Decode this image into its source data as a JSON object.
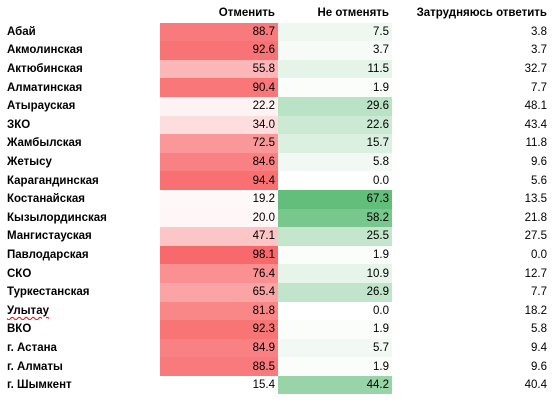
{
  "header": {
    "region": "",
    "cancel": "Отменить",
    "keep": "Не отменять",
    "hard": "Затрудняюсь ответить"
  },
  "colors": {
    "cancel_scale": [
      "#ffffff",
      "#f8696b"
    ],
    "keep_scale": [
      "#ffffff",
      "#63be7b"
    ]
  },
  "rows": [
    {
      "region": "Абай",
      "cancel": "88.7",
      "keep": "7.5",
      "hard": "3.8"
    },
    {
      "region": "Акмолинская",
      "cancel": "92.6",
      "keep": "3.7",
      "hard": "3.7"
    },
    {
      "region": "Актюбинская",
      "cancel": "55.8",
      "keep": "11.5",
      "hard": "32.7"
    },
    {
      "region": "Алматинская",
      "cancel": "90.4",
      "keep": "1.9",
      "hard": "7.7"
    },
    {
      "region": "Атырауская",
      "cancel": "22.2",
      "keep": "29.6",
      "hard": "48.1"
    },
    {
      "region": "ЗКО",
      "cancel": "34.0",
      "keep": "22.6",
      "hard": "43.4"
    },
    {
      "region": "Жамбылская",
      "cancel": "72.5",
      "keep": "15.7",
      "hard": "11.8"
    },
    {
      "region": "Жетысу",
      "cancel": "84.6",
      "keep": "5.8",
      "hard": "9.6"
    },
    {
      "region": "Карагандинская",
      "cancel": "94.4",
      "keep": "0.0",
      "hard": "5.6"
    },
    {
      "region": "Костанайская",
      "cancel": "19.2",
      "keep": "67.3",
      "hard": "13.5"
    },
    {
      "region": "Кызылординская",
      "cancel": "20.0",
      "keep": "58.2",
      "hard": "21.8"
    },
    {
      "region": "Мангистауская",
      "cancel": "47.1",
      "keep": "25.5",
      "hard": "27.5"
    },
    {
      "region": "Павлодарская",
      "cancel": "98.1",
      "keep": "1.9",
      "hard": "0.0"
    },
    {
      "region": "СКО",
      "cancel": "76.4",
      "keep": "10.9",
      "hard": "12.7"
    },
    {
      "region": "Туркестанская",
      "cancel": "65.4",
      "keep": "26.9",
      "hard": "7.7"
    },
    {
      "region": "Улытау",
      "cancel": "81.8",
      "keep": "0.0",
      "hard": "18.2",
      "spellcheck": true
    },
    {
      "region": "ВКО",
      "cancel": "92.3",
      "keep": "1.9",
      "hard": "5.8"
    },
    {
      "region": "г. Астана",
      "cancel": "84.9",
      "keep": "5.7",
      "hard": "9.4"
    },
    {
      "region": "г. Алматы",
      "cancel": "88.5",
      "keep": "1.9",
      "hard": "9.6"
    },
    {
      "region": "г. Шымкент",
      "cancel": "15.4",
      "keep": "44.2",
      "hard": "40.4"
    }
  ]
}
